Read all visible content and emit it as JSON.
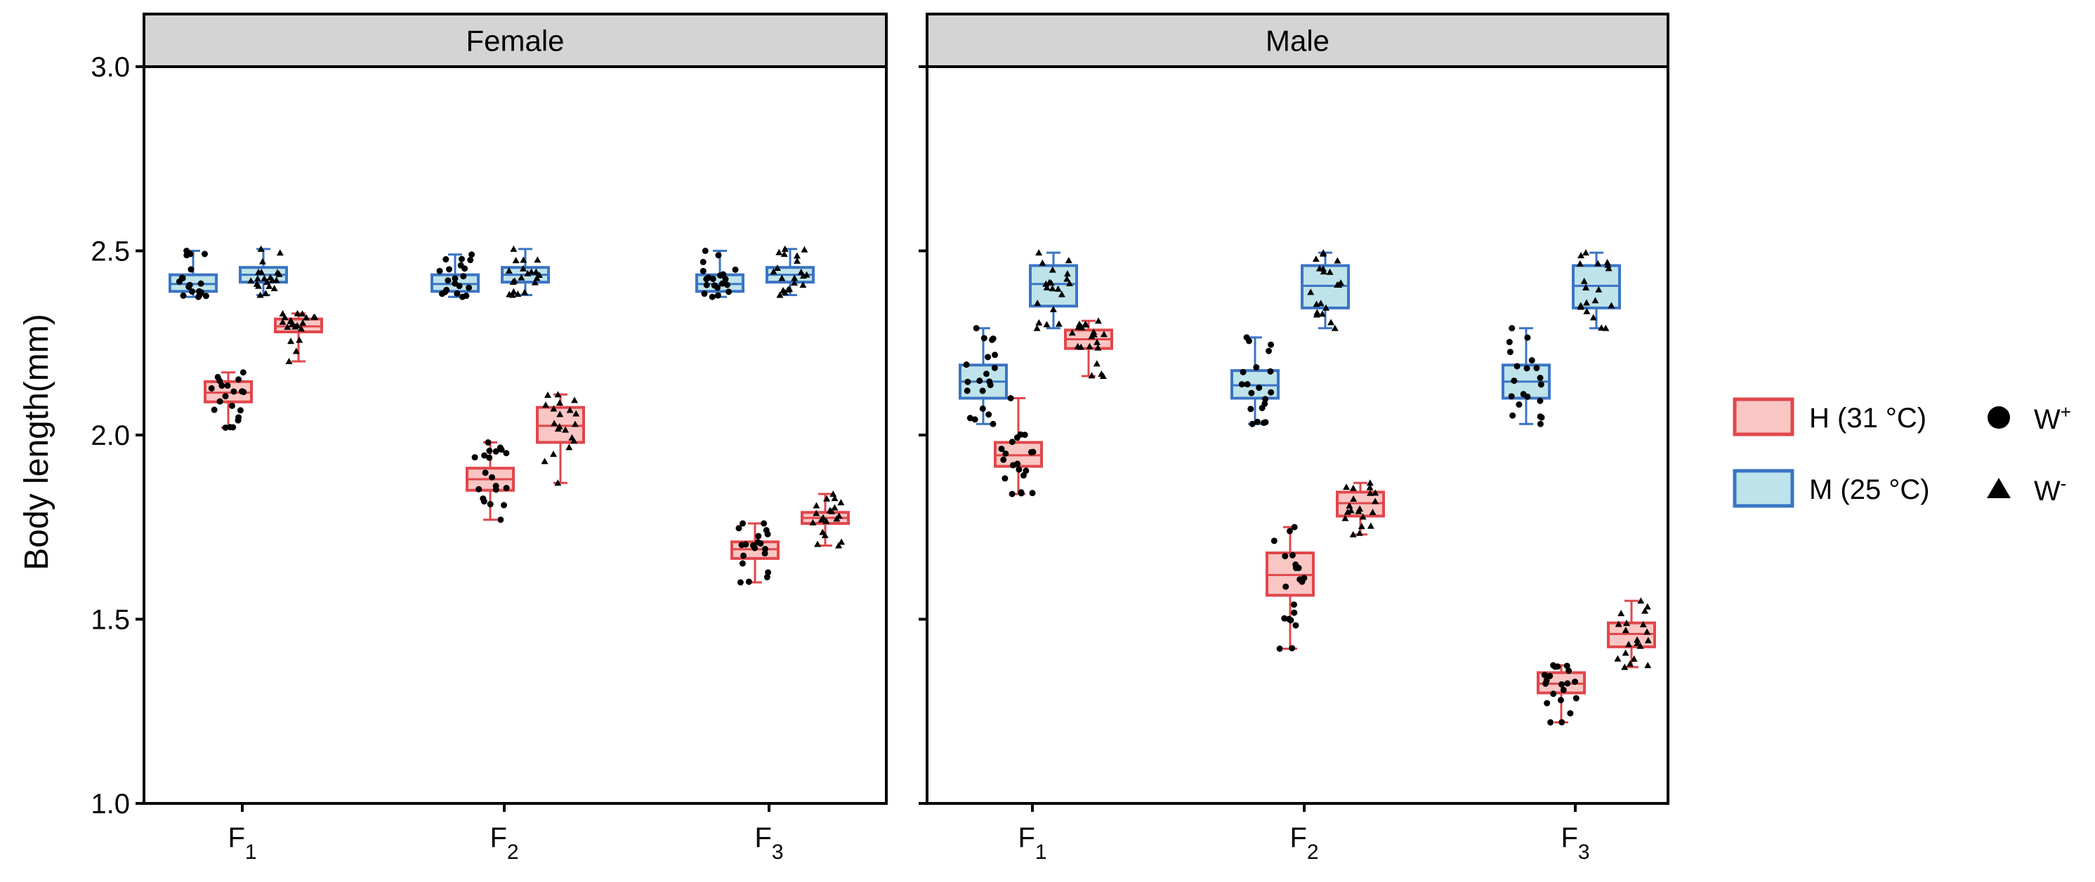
{
  "chart_data": {
    "type": "box",
    "ylabel": "Body length(mm)",
    "ylim": [
      1.0,
      3.0
    ],
    "y_ticks": [
      "1.0",
      "1.5",
      "2.0",
      "2.5",
      "3.0"
    ],
    "categories": [
      {
        "base": "F",
        "sub": "1"
      },
      {
        "base": "F",
        "sub": "2"
      },
      {
        "base": "F",
        "sub": "3"
      }
    ],
    "legend": {
      "fill": [
        {
          "key": "H",
          "label": "H (31 °C)",
          "fill_color": "#f9c6c3",
          "stroke_color": "#e0474c"
        },
        {
          "key": "M",
          "label": "M (25 °C)",
          "fill_color": "#bfe3ea",
          "stroke_color": "#3a74c4"
        }
      ],
      "shape": [
        {
          "key": "Wplus",
          "label": "W",
          "sup": "+",
          "marker": "circle"
        },
        {
          "key": "Wminus",
          "label": "W",
          "sup": "-",
          "marker": "triangle"
        }
      ]
    },
    "panels": [
      {
        "title": "Female",
        "groups": [
          {
            "category": "F1",
            "temp": "M",
            "wolbachia": "W+",
            "min": 2.375,
            "q1": 2.39,
            "median": 2.41,
            "q3": 2.435,
            "max": 2.5
          },
          {
            "category": "F1",
            "temp": "H",
            "wolbachia": "W+",
            "min": 2.02,
            "q1": 2.09,
            "median": 2.115,
            "q3": 2.145,
            "max": 2.17
          },
          {
            "category": "F1",
            "temp": "M",
            "wolbachia": "W-",
            "min": 2.38,
            "q1": 2.415,
            "median": 2.435,
            "q3": 2.455,
            "max": 2.505
          },
          {
            "category": "F1",
            "temp": "H",
            "wolbachia": "W-",
            "min": 2.2,
            "q1": 2.28,
            "median": 2.295,
            "q3": 2.315,
            "max": 2.33
          },
          {
            "category": "F2",
            "temp": "M",
            "wolbachia": "W+",
            "min": 2.375,
            "q1": 2.39,
            "median": 2.41,
            "q3": 2.435,
            "max": 2.49
          },
          {
            "category": "F2",
            "temp": "H",
            "wolbachia": "W+",
            "min": 1.77,
            "q1": 1.85,
            "median": 1.88,
            "q3": 1.91,
            "max": 1.98
          },
          {
            "category": "F2",
            "temp": "M",
            "wolbachia": "W-",
            "min": 2.38,
            "q1": 2.415,
            "median": 2.435,
            "q3": 2.455,
            "max": 2.505
          },
          {
            "category": "F2",
            "temp": "H",
            "wolbachia": "W-",
            "min": 1.87,
            "q1": 1.98,
            "median": 2.025,
            "q3": 2.075,
            "max": 2.11
          },
          {
            "category": "F3",
            "temp": "M",
            "wolbachia": "W+",
            "min": 2.375,
            "q1": 2.39,
            "median": 2.41,
            "q3": 2.435,
            "max": 2.5
          },
          {
            "category": "F3",
            "temp": "H",
            "wolbachia": "W+",
            "min": 1.6,
            "q1": 1.665,
            "median": 1.69,
            "q3": 1.71,
            "max": 1.76
          },
          {
            "category": "F3",
            "temp": "M",
            "wolbachia": "W-",
            "min": 2.38,
            "q1": 2.415,
            "median": 2.435,
            "q3": 2.455,
            "max": 2.505
          },
          {
            "category": "F3",
            "temp": "H",
            "wolbachia": "W-",
            "min": 1.7,
            "q1": 1.76,
            "median": 1.775,
            "q3": 1.79,
            "max": 1.84
          }
        ]
      },
      {
        "title": "Male",
        "groups": [
          {
            "category": "F1",
            "temp": "M",
            "wolbachia": "W+",
            "min": 2.03,
            "q1": 2.1,
            "median": 2.145,
            "q3": 2.19,
            "max": 2.29
          },
          {
            "category": "F1",
            "temp": "H",
            "wolbachia": "W+",
            "min": 1.84,
            "q1": 1.915,
            "median": 1.945,
            "q3": 1.98,
            "max": 2.1
          },
          {
            "category": "F1",
            "temp": "M",
            "wolbachia": "W-",
            "min": 2.29,
            "q1": 2.35,
            "median": 2.41,
            "q3": 2.46,
            "max": 2.495
          },
          {
            "category": "F1",
            "temp": "H",
            "wolbachia": "W-",
            "min": 2.16,
            "q1": 2.235,
            "median": 2.26,
            "q3": 2.285,
            "max": 2.31
          },
          {
            "category": "F2",
            "temp": "M",
            "wolbachia": "W+",
            "min": 2.03,
            "q1": 2.1,
            "median": 2.135,
            "q3": 2.175,
            "max": 2.265
          },
          {
            "category": "F2",
            "temp": "H",
            "wolbachia": "W+",
            "min": 1.42,
            "q1": 1.565,
            "median": 1.62,
            "q3": 1.68,
            "max": 1.75
          },
          {
            "category": "F2",
            "temp": "M",
            "wolbachia": "W-",
            "min": 2.29,
            "q1": 2.345,
            "median": 2.405,
            "q3": 2.46,
            "max": 2.495
          },
          {
            "category": "F2",
            "temp": "H",
            "wolbachia": "W-",
            "min": 1.73,
            "q1": 1.78,
            "median": 1.815,
            "q3": 1.845,
            "max": 1.87
          },
          {
            "category": "F3",
            "temp": "M",
            "wolbachia": "W+",
            "min": 2.03,
            "q1": 2.1,
            "median": 2.145,
            "q3": 2.19,
            "max": 2.29
          },
          {
            "category": "F3",
            "temp": "H",
            "wolbachia": "W+",
            "min": 1.22,
            "q1": 1.3,
            "median": 1.325,
            "q3": 1.355,
            "max": 1.375
          },
          {
            "category": "F3",
            "temp": "M",
            "wolbachia": "W-",
            "min": 2.29,
            "q1": 2.345,
            "median": 2.405,
            "q3": 2.46,
            "max": 2.495
          },
          {
            "category": "F3",
            "temp": "H",
            "wolbachia": "W-",
            "min": 1.37,
            "q1": 1.425,
            "median": 1.46,
            "q3": 1.49,
            "max": 1.55
          }
        ]
      }
    ]
  }
}
